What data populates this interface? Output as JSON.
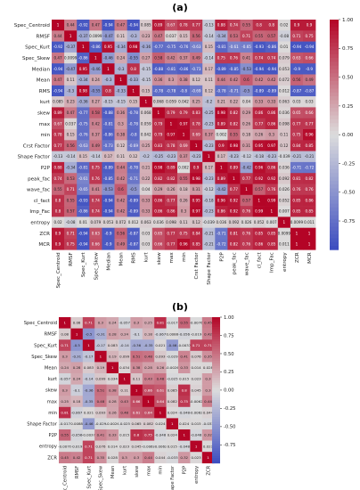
{
  "panels": [
    {
      "label": "(a)"
    },
    {
      "label": "(b)"
    }
  ],
  "colors": {
    "low": "#3b4cc0",
    "mid": "#dcdcdc",
    "high": "#b40426"
  },
  "chart_data": [
    {
      "type": "heatmap",
      "title": "",
      "labels": [
        "Spec_Centroid",
        "RMSF",
        "Spec_Kurt",
        "Spec_Skew",
        "Median",
        "Mean",
        "RMS",
        "kurt",
        "skew",
        "max",
        "min",
        "Crst Factor",
        "Shape Factor",
        "P2P",
        "peak_fac",
        "wave_fac",
        "cl_fact",
        "Imp_Fac",
        "entropy",
        "ZCR",
        "MCR"
      ],
      "values": [
        [
          1,
          0.44,
          -0.92,
          0.47,
          -0.94,
          0.47,
          -0.94,
          0.085,
          0.89,
          0.67,
          0.78,
          0.77,
          -0.13,
          0.88,
          0.74,
          0.55,
          0.8,
          0.8,
          0.02,
          0.9,
          0.9
        ],
        [
          0.44,
          1,
          -0.37,
          0.0099,
          -0.47,
          0.11,
          -0.3,
          0.23,
          0.47,
          0.037,
          0.15,
          0.56,
          -0.14,
          -0.34,
          0.53,
          0.71,
          0.55,
          0.57,
          -0.08,
          0.71,
          0.75
        ],
        [
          -0.92,
          -0.37,
          1,
          -0.86,
          0.95,
          -0.34,
          0.98,
          -0.36,
          -0.77,
          -0.75,
          -0.76,
          -0.63,
          0.15,
          -0.81,
          -0.61,
          -0.65,
          -0.93,
          -0.86,
          0.01,
          -0.94,
          -0.94
        ],
        [
          0.47,
          0.0099,
          -0.86,
          1,
          -0.46,
          0.24,
          -0.55,
          0.27,
          0.58,
          0.42,
          0.37,
          0.49,
          -0.14,
          0.75,
          0.76,
          0.41,
          0.74,
          0.74,
          0.079,
          0.63,
          0.66
        ],
        [
          -0.94,
          -0.47,
          0.95,
          -0.46,
          1,
          -0.3,
          0.8,
          -0.15,
          -0.88,
          -0.81,
          -0.86,
          -0.73,
          0.17,
          -0.89,
          -0.85,
          -0.53,
          -0.94,
          -0.94,
          0.053,
          -0.9,
          -0.9
        ],
        [
          0.47,
          0.11,
          -0.34,
          0.24,
          -0.3,
          1,
          -0.33,
          -0.15,
          0.36,
          0.3,
          0.38,
          0.12,
          0.11,
          0.44,
          0.42,
          0.6,
          0.42,
          0.42,
          0.072,
          0.56,
          0.49
        ],
        [
          -0.94,
          -0.3,
          0.98,
          -0.55,
          0.8,
          -0.33,
          1,
          0.15,
          -0.78,
          -0.78,
          -0.8,
          -0.69,
          0.12,
          -0.78,
          -0.71,
          -0.5,
          -0.89,
          -0.89,
          0.012,
          -0.87,
          -0.87
        ],
        [
          0.085,
          0.23,
          -0.36,
          0.27,
          -0.15,
          -0.15,
          0.15,
          1,
          0.068,
          0.059,
          0.042,
          0.25,
          -0.2,
          0.21,
          0.22,
          0.04,
          0.33,
          0.33,
          0.063,
          0.03,
          0.03
        ],
        [
          0.89,
          0.47,
          -0.77,
          0.58,
          -0.88,
          0.36,
          -0.78,
          0.068,
          1,
          0.79,
          0.79,
          0.83,
          -0.25,
          0.98,
          0.82,
          0.29,
          0.86,
          0.86,
          0.036,
          0.65,
          0.66
        ],
        [
          0.67,
          0.037,
          -0.75,
          0.42,
          -0.81,
          0.3,
          -0.78,
          0.059,
          0.79,
          1,
          0.97,
          0.78,
          -0.23,
          0.89,
          0.82,
          0.26,
          0.77,
          0.86,
          0.098,
          0.77,
          0.77
        ],
        [
          0.78,
          0.15,
          -0.76,
          0.37,
          -0.86,
          0.38,
          -0.8,
          0.042,
          0.79,
          0.97,
          1,
          0.69,
          0.37,
          0.002,
          0.55,
          0.18,
          0.26,
          0.3,
          0.11,
          0.75,
          0.96
        ],
        [
          0.77,
          0.56,
          -0.63,
          0.49,
          -0.73,
          0.12,
          -0.69,
          0.25,
          0.83,
          0.78,
          0.69,
          1,
          -0.23,
          0.9,
          0.98,
          0.31,
          0.95,
          0.97,
          0.12,
          0.84,
          0.85
        ],
        [
          -0.13,
          -0.14,
          0.15,
          -0.14,
          0.17,
          0.11,
          0.12,
          -0.2,
          -0.25,
          -0.23,
          0.37,
          -0.23,
          1,
          0.17,
          -0.23,
          -0.12,
          -0.18,
          -0.23,
          -0.039,
          -0.21,
          -0.21
        ],
        [
          0.88,
          -0.34,
          -0.81,
          0.75,
          -0.89,
          0.44,
          -0.78,
          0.21,
          0.98,
          0.89,
          0.002,
          0.9,
          0.17,
          1,
          0.89,
          -0.42,
          0.96,
          0.86,
          0.036,
          -0.71,
          -0.72
        ],
        [
          0.74,
          0.53,
          -0.61,
          0.76,
          -0.85,
          0.42,
          -0.71,
          0.22,
          0.82,
          0.82,
          0.55,
          0.98,
          -0.23,
          0.89,
          1,
          0.77,
          0.92,
          0.92,
          0.092,
          0.81,
          0.82
        ],
        [
          0.55,
          0.71,
          -0.65,
          0.41,
          -0.53,
          0.6,
          -0.5,
          0.04,
          0.29,
          0.26,
          0.18,
          0.31,
          -0.12,
          -0.42,
          0.77,
          1,
          0.57,
          0.76,
          0.026,
          0.76,
          0.76
        ],
        [
          0.8,
          0.55,
          -0.93,
          0.74,
          -0.94,
          0.42,
          -0.89,
          0.33,
          0.86,
          0.77,
          0.26,
          0.95,
          -0.18,
          0.96,
          0.92,
          0.57,
          1,
          0.99,
          0.052,
          0.85,
          0.86
        ],
        [
          0.8,
          0.57,
          -0.86,
          0.74,
          -0.94,
          0.42,
          -0.89,
          0.33,
          0.86,
          0.86,
          0.3,
          0.97,
          -0.23,
          0.86,
          0.92,
          0.76,
          0.99,
          1,
          0.007,
          0.85,
          0.85
        ],
        [
          0.02,
          -0.08,
          0.01,
          0.079,
          0.053,
          0.072,
          0.012,
          0.063,
          0.036,
          0.098,
          0.11,
          0.12,
          -0.039,
          0.036,
          0.092,
          0.026,
          0.052,
          0.007,
          1,
          0.0099,
          0.011
        ],
        [
          0.9,
          0.71,
          -0.94,
          0.63,
          -0.9,
          0.56,
          -0.87,
          0.03,
          0.65,
          0.77,
          0.75,
          0.84,
          -0.21,
          -0.71,
          0.81,
          0.76,
          0.85,
          0.85,
          0.0099,
          1,
          1
        ],
        [
          0.9,
          0.75,
          -0.94,
          0.66,
          -0.9,
          0.49,
          -0.87,
          0.03,
          0.66,
          0.77,
          0.96,
          0.85,
          -0.21,
          -0.72,
          0.82,
          0.76,
          0.86,
          0.85,
          0.011,
          1,
          1
        ]
      ],
      "colorbar_ticks": [
        "1.00",
        "0.75",
        "0.50",
        "0.25",
        "0.00",
        "-0.25",
        "-0.50",
        "-0.75"
      ],
      "vmin": -1,
      "vmax": 1
    },
    {
      "type": "heatmap",
      "title": "",
      "labels": [
        "Spec_Centroid",
        "RMSF",
        "Spec_Kurt",
        "Spec_Skew",
        "Mean",
        "kurt",
        "skew",
        "max",
        "min",
        "Shape Factor",
        "P2P",
        "entropy",
        "ZCR"
      ],
      "values": [
        [
          1,
          0.08,
          0.71,
          0.3,
          0.24,
          -0.057,
          0.3,
          0.25,
          0.81,
          -0.017,
          0.55,
          -0.0076,
          0.45
        ],
        [
          0.08,
          1,
          -0.5,
          -0.31,
          0.28,
          0.24,
          -0.1,
          0.18,
          -0.067,
          0.0088,
          -0.056,
          -0.019,
          0.42
        ],
        [
          0.71,
          -0.5,
          1,
          -0.17,
          0.083,
          -0.14,
          -0.36,
          -0.35,
          0.021,
          -0.46,
          -0.0037,
          0.71,
          0.71
        ],
        [
          0.3,
          -0.31,
          -0.17,
          1,
          0.19,
          0.099,
          0.51,
          0.48,
          0.093,
          -0.029,
          0.41,
          0.076,
          0.35
        ],
        [
          0.24,
          0.28,
          0.083,
          0.19,
          1,
          0.034,
          0.38,
          0.28,
          0.26,
          -0.0026,
          0.33,
          0.014,
          0.028
        ],
        [
          -0.057,
          0.24,
          -0.14,
          0.099,
          0.034,
          1,
          0.11,
          0.43,
          0.48,
          -0.025,
          0.015,
          0.023,
          0.3
        ],
        [
          0.3,
          -0.1,
          -0.36,
          0.51,
          0.38,
          0.11,
          1,
          0.66,
          0.61,
          0.065,
          0.8,
          0.045,
          0.3
        ],
        [
          0.25,
          0.18,
          -0.35,
          0.48,
          0.28,
          0.43,
          0.66,
          1,
          0.64,
          0.082,
          0.75,
          -0.0062,
          0.44
        ],
        [
          0.81,
          -0.067,
          0.021,
          0.093,
          0.26,
          0.48,
          0.61,
          0.64,
          1,
          0.024,
          -0.048,
          -0.0062,
          0.044
        ],
        [
          -0.017,
          0.0088,
          -0.46,
          -0.029,
          -0.0026,
          -0.025,
          0.065,
          0.082,
          0.024,
          1,
          0.024,
          0.015,
          -0.033
        ],
        [
          0.55,
          -0.056,
          -0.0037,
          0.41,
          0.33,
          0.015,
          0.8,
          0.75,
          -0.048,
          0.024,
          1,
          -0.048,
          0.32
        ],
        [
          -0.0076,
          -0.019,
          0.71,
          0.076,
          0.014,
          0.023,
          0.045,
          -0.0062,
          -0.0062,
          0.015,
          -0.048,
          1,
          0.023
        ],
        [
          0.45,
          0.42,
          0.71,
          0.35,
          0.028,
          0.3,
          0.3,
          0.44,
          0.044,
          -0.033,
          0.32,
          0.023,
          1
        ]
      ],
      "colorbar_ticks": [
        "1.00",
        "0.75",
        "0.50",
        "0.25",
        "0.00",
        "-0.25",
        "-0.50",
        "-0.75"
      ],
      "vmin": -1,
      "vmax": 1
    }
  ]
}
